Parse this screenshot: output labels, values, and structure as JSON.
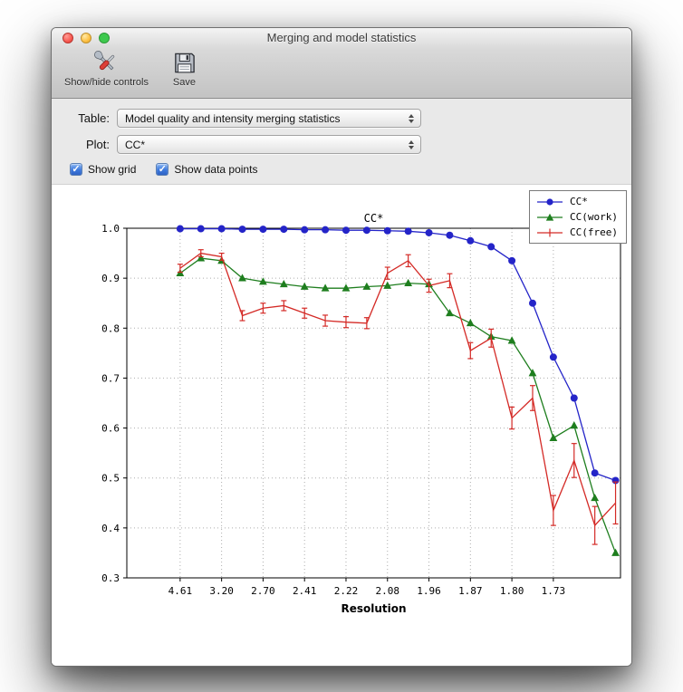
{
  "window": {
    "title": "Merging and model statistics",
    "buttons": {
      "close": "close",
      "minimize": "minimize",
      "zoom": "zoom"
    }
  },
  "toolbar": {
    "items": [
      {
        "label": "Show/hide controls",
        "icon": "tools-icon"
      },
      {
        "label": "Save",
        "icon": "save-icon"
      }
    ]
  },
  "controls": {
    "table_label": "Table:",
    "table_value": "Model quality and intensity merging statistics",
    "plot_label": "Plot:",
    "plot_value": "CC*",
    "checkboxes": [
      {
        "label": "Show grid",
        "checked": true
      },
      {
        "label": "Show data points",
        "checked": true
      }
    ]
  },
  "chart_data": {
    "type": "line",
    "title": "CC*",
    "xlabel": "Resolution",
    "ylabel": "",
    "ylim": [
      0.3,
      1.0
    ],
    "yticks": [
      0.3,
      0.4,
      0.5,
      0.6,
      0.7,
      0.8,
      0.9,
      1.0
    ],
    "grid": true,
    "legend_position": "upper right",
    "xtick_labels": [
      "4.61",
      "3.20",
      "2.70",
      "2.41",
      "2.22",
      "2.08",
      "1.96",
      "1.87",
      "1.80",
      "1.73"
    ],
    "xtick_bins": [
      0,
      2,
      4,
      6,
      8,
      10,
      12,
      14,
      16,
      18
    ],
    "series": [
      {
        "name": "CC*",
        "color": "#2424c8",
        "marker": "circle",
        "values": [
          0.999,
          0.999,
          0.999,
          0.998,
          0.998,
          0.998,
          0.997,
          0.997,
          0.996,
          0.996,
          0.995,
          0.994,
          0.991,
          0.986,
          0.975,
          0.963,
          0.935,
          0.85,
          0.742,
          0.66,
          0.51,
          0.495
        ]
      },
      {
        "name": "CC(work)",
        "color": "#1e7e1e",
        "marker": "triangle",
        "values": [
          0.91,
          0.94,
          0.935,
          0.9,
          0.893,
          0.888,
          0.883,
          0.88,
          0.88,
          0.883,
          0.885,
          0.89,
          0.888,
          0.83,
          0.81,
          0.783,
          0.775,
          0.71,
          0.58,
          0.605,
          0.46,
          0.35
        ]
      },
      {
        "name": "CC(free)",
        "color": "#d42a26",
        "marker": "errorbar",
        "values": [
          0.92,
          0.95,
          0.943,
          0.825,
          0.84,
          0.845,
          0.83,
          0.815,
          0.812,
          0.81,
          0.91,
          0.935,
          0.885,
          0.895,
          0.755,
          0.78,
          0.62,
          0.66,
          0.435,
          0.535,
          0.405,
          0.45
        ],
        "errors": [
          0.008,
          0.007,
          0.007,
          0.01,
          0.01,
          0.01,
          0.01,
          0.011,
          0.011,
          0.011,
          0.012,
          0.012,
          0.013,
          0.014,
          0.016,
          0.018,
          0.022,
          0.025,
          0.03,
          0.034,
          0.038,
          0.042
        ]
      }
    ]
  }
}
